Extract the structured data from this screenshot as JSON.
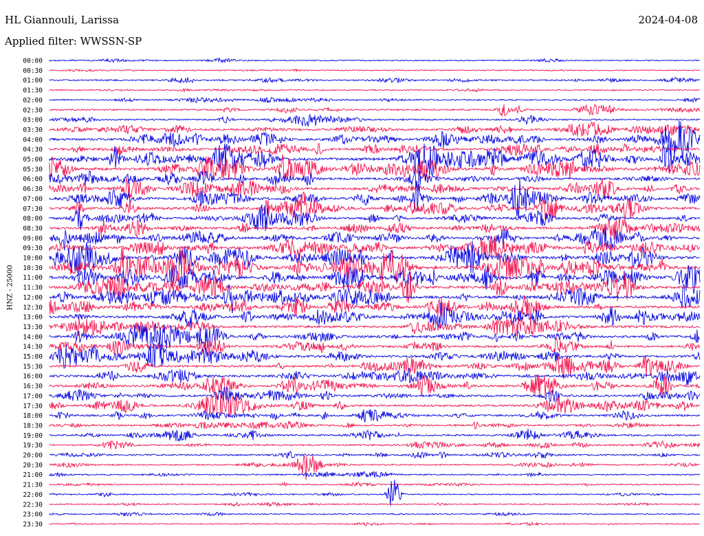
{
  "header": {
    "station": "HL Giannouli, Larissa",
    "date": "2024-04-08",
    "filter": "Applied filter: WWSSN-SP"
  },
  "chart_data": {
    "type": "line",
    "title": "HL Giannouli, Larissa",
    "ylabel": "HNZ - 25000",
    "row_labels": [
      "00:00",
      "00:30",
      "01:00",
      "01:30",
      "02:00",
      "02:30",
      "03:00",
      "03:30",
      "04:00",
      "04:30",
      "05:00",
      "05:30",
      "06:00",
      "06:30",
      "07:00",
      "07:30",
      "08:00",
      "08:30",
      "09:00",
      "09:30",
      "10:00",
      "10:30",
      "11:00",
      "11:30",
      "12:00",
      "12:30",
      "13:00",
      "13:30",
      "14:00",
      "14:30",
      "15:00",
      "15:30",
      "16:00",
      "16:30",
      "17:00",
      "17:30",
      "18:00",
      "18:30",
      "19:00",
      "19:30",
      "20:00",
      "20:30",
      "21:00",
      "21:30",
      "22:00",
      "22:30",
      "23:00",
      "23:30"
    ],
    "colors": [
      "#0000e0",
      "#f0104a"
    ],
    "row_activity": [
      0.12,
      0.08,
      0.22,
      0.12,
      0.2,
      0.3,
      0.3,
      0.45,
      0.6,
      0.55,
      0.75,
      0.7,
      0.55,
      0.55,
      0.6,
      0.65,
      0.55,
      0.6,
      0.55,
      0.65,
      0.8,
      0.85,
      0.8,
      0.75,
      0.7,
      0.65,
      0.65,
      0.6,
      0.6,
      0.55,
      0.6,
      0.55,
      0.55,
      0.55,
      0.5,
      0.5,
      0.45,
      0.35,
      0.35,
      0.3,
      0.3,
      0.2,
      0.18,
      0.15,
      0.15,
      0.12,
      0.12,
      0.1
    ]
  }
}
